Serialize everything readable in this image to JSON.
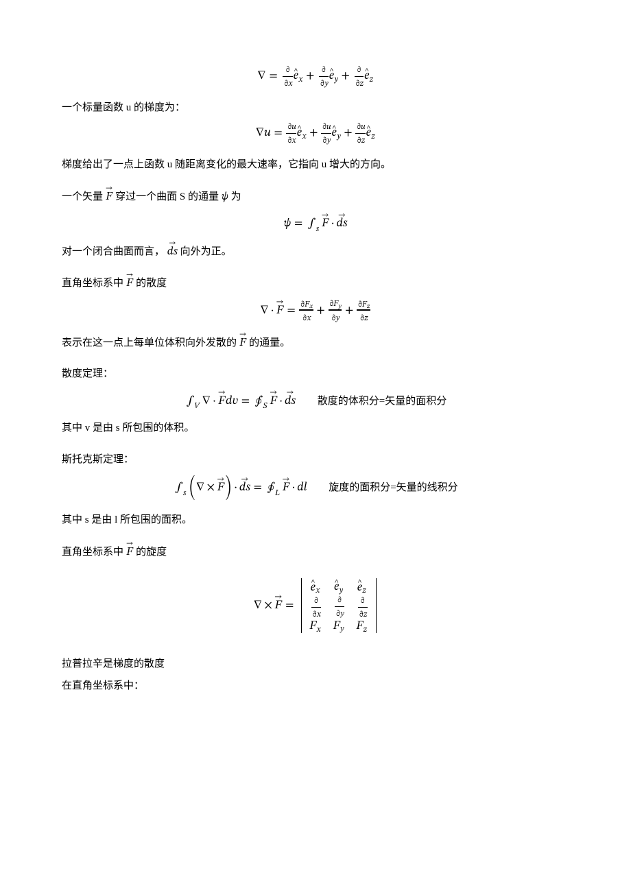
{
  "colors": {
    "text": "#000000",
    "background": "#ffffff"
  },
  "font": {
    "body_family": "SimSun / Songti SC",
    "body_size_pt": 12,
    "math_family": "Cambria Math / STIX",
    "math_size_pt": 13
  },
  "eq1": {
    "label": "nabla-definition",
    "tex": "\\nabla = \\frac{\\partial}{\\partial x}\\hat e_x + \\frac{\\partial}{\\partial y}\\hat e_y + \\frac{\\partial}{\\partial z}\\hat e_z"
  },
  "p1": {
    "text": "一个标量函数 u 的梯度为："
  },
  "eq2": {
    "label": "gradient",
    "tex": "\\nabla u = \\frac{\\partial u}{\\partial x}\\hat e_x + \\frac{\\partial u}{\\partial y}\\hat e_y + \\frac{\\partial u}{\\partial z}\\hat e_z"
  },
  "p2": {
    "text": "梯度给出了一点上函数 u 随距离变化的最大速率，它指向 u 增大的方向。"
  },
  "p3": {
    "before": "一个矢量 ",
    "mid1": " 穿过一个曲面 S 的通量 ",
    "after": " 为",
    "F_tex": "\\vec F",
    "psi_tex": "\\psi"
  },
  "eq3": {
    "label": "flux-definition",
    "tex": "\\psi = \\int_s \\vec F \\cdot \\overrightarrow{ds}"
  },
  "p4": {
    "before": "对一个闭合曲面而言， ",
    "after": " 向外为正。",
    "ds_tex": "\\overrightarrow{ds}"
  },
  "p5": {
    "before": "直角坐标系中 ",
    "after": " 的散度",
    "F_tex": "\\vec F"
  },
  "eq4": {
    "label": "divergence-cartesian",
    "tex": "\\nabla\\cdot\\vec F = \\frac{\\partial F_x}{\\partial x}+\\frac{\\partial F_y}{\\partial y}+\\frac{\\partial F_z}{\\partial z}"
  },
  "p6": {
    "before": "表示在这一点上每单位体积向外发散的 ",
    "after": " 的通量。",
    "F_tex": "\\vec F"
  },
  "p7": {
    "text": "散度定理："
  },
  "eq5": {
    "label": "divergence-theorem",
    "tex": "\\int_V \\nabla\\cdot\\vec F\\,dv = \\oint_S \\vec F\\cdot\\overrightarrow{ds}",
    "note": "散度的体积分=矢量的面积分"
  },
  "p8": {
    "text": "其中 v 是由 s 所包围的体积。"
  },
  "p9": {
    "text": "斯托克斯定理："
  },
  "eq6": {
    "label": "stokes-theorem",
    "tex": "\\int_s (\\nabla\\times\\vec F)\\cdot\\overrightarrow{ds} = \\oint_L \\vec F\\cdot dl",
    "note": "旋度的面积分=矢量的线积分"
  },
  "p10": {
    "text": "其中 s 是由 l 所包围的面积。"
  },
  "p11": {
    "before": "直角坐标系中 ",
    "after": " 的旋度",
    "F_tex": "\\vec F"
  },
  "eq7": {
    "label": "curl-determinant",
    "lhs_tex": "\\nabla\\times\\vec F =",
    "matrix_rows": [
      [
        "\\hat e_x",
        "\\hat e_y",
        "\\hat e_z"
      ],
      [
        "\\dfrac{\\partial}{\\partial x}",
        "\\dfrac{\\partial}{\\partial y}",
        "\\dfrac{\\partial}{\\partial z}"
      ],
      [
        "F_x",
        "F_y",
        "F_z"
      ]
    ]
  },
  "p12": {
    "text": "拉普拉辛是梯度的散度"
  },
  "p13": {
    "text": "在直角坐标系中："
  }
}
